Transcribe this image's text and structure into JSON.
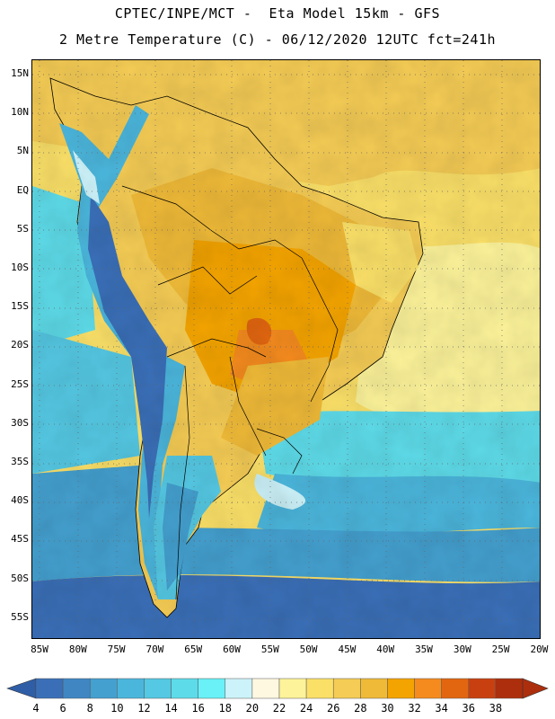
{
  "title_line1": "CPTEC/INPE/MCT -  Eta Model 15km - GFS",
  "title_line2": "2 Metre Temperature (C) - 06/12/2020 12UTC fct=241h",
  "lat_labels": [
    "15N",
    "10N",
    "5N",
    "EQ",
    "5S",
    "10S",
    "15S",
    "20S",
    "25S",
    "30S",
    "35S",
    "40S",
    "45S",
    "50S",
    "55S"
  ],
  "lon_labels": [
    "85W",
    "80W",
    "75W",
    "70W",
    "65W",
    "60W",
    "55W",
    "50W",
    "45W",
    "40W",
    "35W",
    "30W",
    "25W",
    "20W"
  ],
  "colorbar": {
    "ticks": [
      "4",
      "6",
      "8",
      "10",
      "12",
      "14",
      "16",
      "18",
      "20",
      "22",
      "24",
      "26",
      "28",
      "30",
      "32",
      "34",
      "36",
      "38"
    ],
    "colors": [
      "#3a6fb8",
      "#3f86c3",
      "#44a0cf",
      "#4bb6dc",
      "#55c8e3",
      "#5edbe9",
      "#69f1f7",
      "#cdf3fa",
      "#fff8e0",
      "#fdf39a",
      "#fbe068",
      "#f5cc55",
      "#efba38",
      "#f4a400",
      "#f58b1e",
      "#e26610",
      "#c94010",
      "#ad2e0c"
    ],
    "left_arrow_color": "#2f5ea7",
    "right_arrow_color": "#ad2e0c"
  }
}
